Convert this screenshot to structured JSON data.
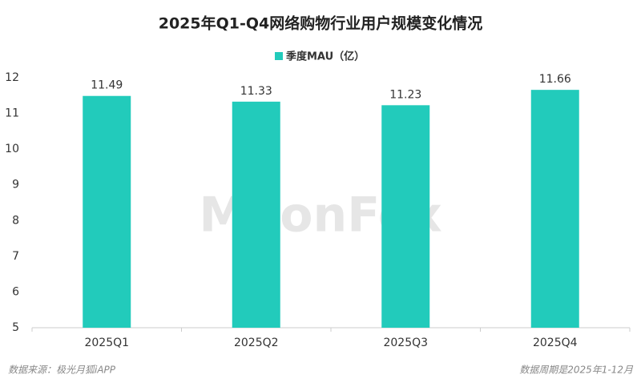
{
  "chart_data": {
    "type": "bar",
    "title": "2025年Q1-Q4网络购物行业用户规模变化情况",
    "legend_label": "季度MAU（亿）",
    "categories": [
      "2025Q1",
      "2025Q2",
      "2025Q3",
      "2025Q4"
    ],
    "series": [
      {
        "name": "季度MAU（亿）",
        "color": "#22cbbb",
        "values": [
          11.49,
          11.33,
          11.23,
          11.66
        ]
      }
    ],
    "ylim": [
      5,
      12
    ],
    "yticks": [
      5,
      6,
      7,
      8,
      9,
      10,
      11,
      12
    ],
    "grid": false,
    "watermark": "MoonFox",
    "source": "数据来源：极光月狐iAPP",
    "period": "数据周期是2025年1-12月"
  }
}
